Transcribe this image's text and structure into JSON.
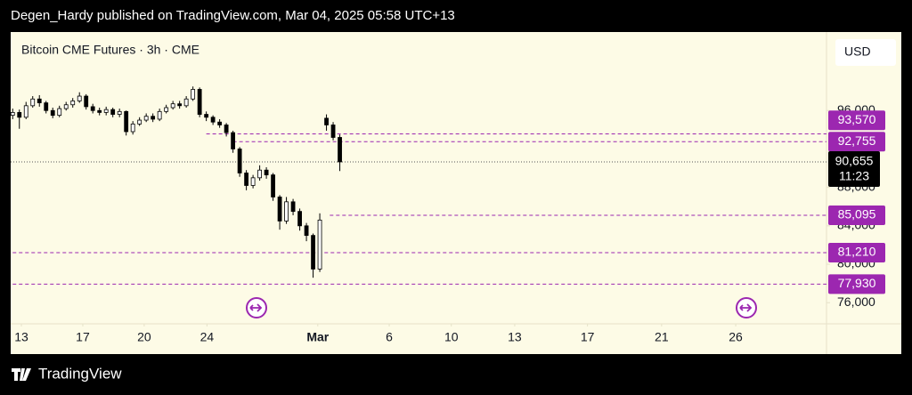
{
  "header": {
    "text": "Degen_Hardy published on TradingView.com, Mar 04, 2025 05:58 UTC+13"
  },
  "footer": {
    "brand": "TradingView"
  },
  "chart_data": {
    "type": "candlestick",
    "title": "Bitcoin CME Futures · 3h · CME",
    "currency": "USD",
    "up_color": "#ffffff",
    "down_color": "#000000",
    "wick_color": "#000000",
    "xlim": [
      -0.3,
      121.9
    ],
    "ylim": [
      73800,
      104170
    ],
    "xticks": [
      {
        "value": 1.3,
        "label": "13"
      },
      {
        "value": 10.5,
        "label": "17"
      },
      {
        "value": 19.7,
        "label": "20"
      },
      {
        "value": 29.1,
        "label": "24"
      },
      {
        "value": 45.7,
        "label": "Mar"
      },
      {
        "value": 56.4,
        "label": "6"
      },
      {
        "value": 65.7,
        "label": "10"
      },
      {
        "value": 75.2,
        "label": "13"
      },
      {
        "value": 86.1,
        "label": "17"
      },
      {
        "value": 97.2,
        "label": "21"
      },
      {
        "value": 108.3,
        "label": "26"
      }
    ],
    "yticks": [
      {
        "value": 76000,
        "label": "76,000"
      },
      {
        "value": 80000,
        "label": "80,000"
      },
      {
        "value": 84000,
        "label": "84,000"
      },
      {
        "value": 88000,
        "label": "88,000"
      },
      {
        "value": 96000,
        "label": "96,000"
      }
    ],
    "x": [
      0,
      1,
      2,
      3,
      4,
      5,
      6,
      7,
      8,
      9,
      10,
      11,
      12,
      13,
      14,
      15,
      16,
      17,
      18,
      19,
      20,
      21,
      22,
      23,
      24,
      25,
      26,
      27,
      28,
      29,
      30,
      31,
      32,
      33,
      34,
      35,
      36,
      37,
      38,
      39,
      40,
      41,
      42,
      43,
      44,
      45,
      46,
      47,
      48,
      49
    ],
    "open": [
      95500,
      95800,
      95300,
      96500,
      97200,
      96800,
      96000,
      95500,
      96200,
      96600,
      97000,
      97500,
      96400,
      96000,
      95800,
      96100,
      95600,
      95900,
      93800,
      94600,
      95000,
      95400,
      95100,
      95900,
      96300,
      96700,
      96500,
      97200,
      98200,
      95600,
      95300,
      94800,
      94500,
      93700,
      92000,
      89500,
      88200,
      89000,
      89800,
      89300,
      87000,
      84500,
      86500,
      85500,
      84000,
      83000,
      79500,
      95200,
      94500,
      93200
    ],
    "high": [
      96200,
      96100,
      96900,
      97500,
      97600,
      97000,
      96300,
      96500,
      96900,
      97300,
      97900,
      97700,
      96700,
      96300,
      96400,
      96300,
      96200,
      96000,
      94900,
      95300,
      95700,
      95700,
      96200,
      96600,
      97000,
      97000,
      97500,
      98500,
      98400,
      95900,
      95500,
      95100,
      94700,
      93900,
      92200,
      89800,
      89300,
      90300,
      90100,
      89500,
      87200,
      87000,
      86800,
      85800,
      84300,
      83200,
      85300,
      95600,
      94800,
      93500
    ],
    "low": [
      95100,
      94100,
      95100,
      96300,
      96400,
      95700,
      95200,
      95300,
      96000,
      96300,
      96800,
      96100,
      95700,
      95500,
      95500,
      95300,
      95300,
      93400,
      93500,
      94400,
      94800,
      94800,
      94900,
      95700,
      96100,
      96200,
      96300,
      97000,
      95300,
      94900,
      94500,
      94200,
      93300,
      91600,
      89100,
      87700,
      87900,
      88700,
      88900,
      86600,
      83600,
      84200,
      85100,
      83500,
      82400,
      78600,
      79200,
      93900,
      92900,
      89700
    ],
    "close": [
      95800,
      95300,
      96500,
      97200,
      96800,
      96000,
      95500,
      96200,
      96600,
      97000,
      97500,
      96400,
      96000,
      95800,
      96100,
      95600,
      95900,
      93800,
      94600,
      95000,
      95400,
      95100,
      95900,
      96300,
      96700,
      96500,
      97200,
      98200,
      95600,
      95300,
      94800,
      94500,
      93700,
      92000,
      89500,
      88200,
      89000,
      89800,
      89300,
      87000,
      84500,
      86500,
      85500,
      84000,
      83000,
      79500,
      84600,
      94500,
      93200,
      90655
    ],
    "levels": {
      "color": "#9c27b0",
      "values": [
        93570,
        92755,
        85095,
        81210,
        77930
      ],
      "value_labels": [
        "93,570",
        "92,755",
        "85,095",
        "81,210",
        "77,930"
      ],
      "start": [
        29,
        33,
        47.5,
        0,
        0
      ]
    },
    "last": {
      "value": 90655,
      "label": "90,655",
      "countdown": "11:23"
    }
  }
}
